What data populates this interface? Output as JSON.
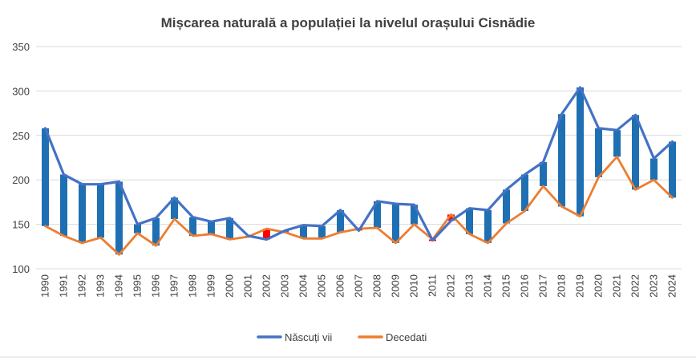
{
  "chart_data": {
    "type": "line",
    "title": "Mișcarea naturală a populației la nivelul orașului Cisnădie",
    "xlabel": "",
    "ylabel": "",
    "ylim": [
      100,
      350
    ],
    "yticks": [
      100,
      150,
      200,
      250,
      300,
      350
    ],
    "grid": true,
    "legend": "bottom",
    "categories": [
      "1990",
      "1991",
      "1992",
      "1993",
      "1994",
      "1995",
      "1996",
      "1997",
      "1998",
      "1999",
      "2000",
      "2001",
      "2002",
      "2003",
      "2004",
      "2005",
      "2006",
      "2007",
      "2008",
      "2009",
      "2010",
      "2011",
      "2012",
      "2013",
      "2014",
      "2015",
      "2016",
      "2017",
      "2018",
      "2019",
      "2020",
      "2021",
      "2022",
      "2023",
      "2024"
    ],
    "series": [
      {
        "name": "Născuți vii",
        "color": "#4472C4",
        "values": [
          258,
          206,
          195,
          195,
          198,
          150,
          157,
          180,
          158,
          153,
          157,
          137,
          133,
          143,
          149,
          148,
          166,
          143,
          176,
          173,
          172,
          132,
          154,
          168,
          166,
          189,
          206,
          220,
          274,
          304,
          258,
          256,
          273,
          224,
          243
        ]
      },
      {
        "name": "Decedati",
        "color": "#ED7D31",
        "values": [
          148,
          137,
          129,
          135,
          116,
          140,
          126,
          156,
          137,
          139,
          133,
          136,
          145,
          141,
          134,
          134,
          141,
          145,
          146,
          129,
          150,
          133,
          161,
          139,
          129,
          151,
          165,
          193,
          170,
          159,
          203,
          226,
          189,
          200,
          180
        ]
      }
    ],
    "updown_bars": {
      "up_color": "#1F6FB3",
      "down_color": "#FF0000"
    }
  }
}
